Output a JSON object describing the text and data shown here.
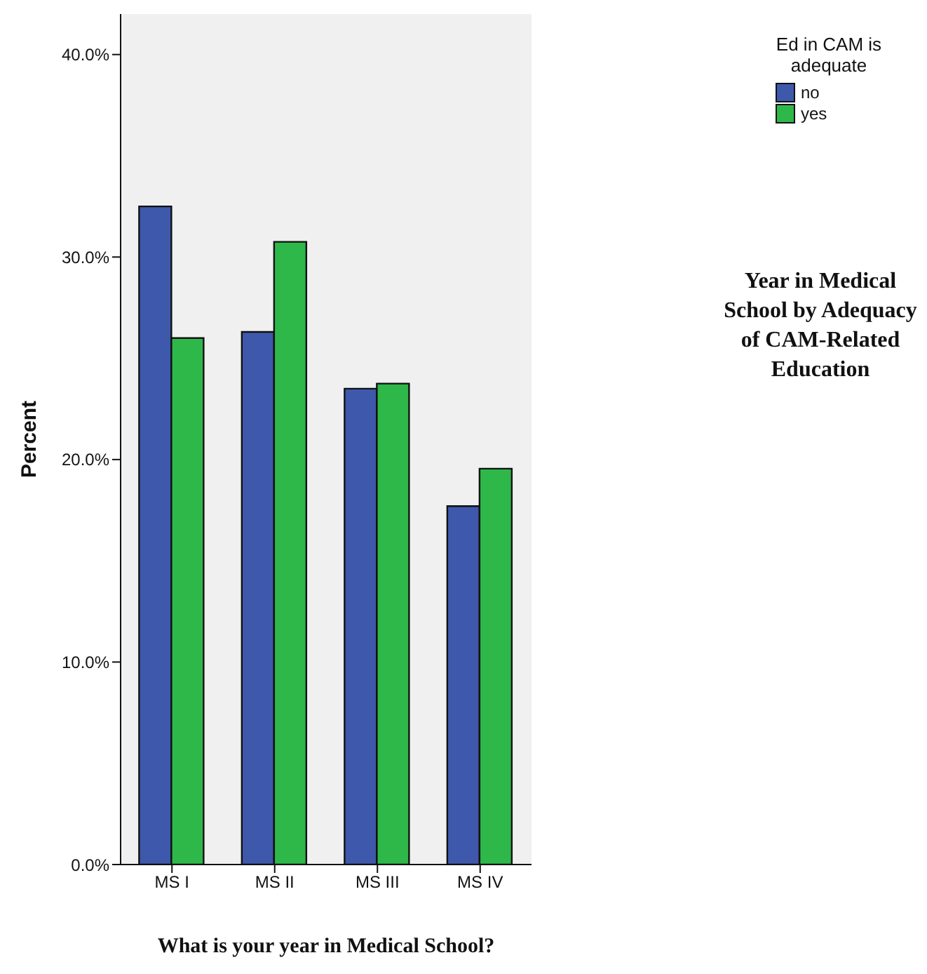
{
  "chart_data": {
    "type": "bar",
    "title": "Year in Medical School by Adequacy of CAM-Related Education",
    "xlabel": "What is your year in Medical School?",
    "ylabel": "Percent",
    "legend_title": "Ed in CAM is adequate",
    "categories": [
      "MS I",
      "MS II",
      "MS III",
      "MS IV"
    ],
    "series": [
      {
        "name": "no",
        "color": "#3e58ac",
        "values": [
          32.5,
          26.3,
          23.5,
          17.7
        ]
      },
      {
        "name": "yes",
        "color": "#2eb84a",
        "values": [
          26.0,
          30.75,
          23.75,
          19.55
        ]
      }
    ],
    "ylim": [
      0,
      42
    ],
    "yticks": [
      {
        "value": 0,
        "label": "0.0%"
      },
      {
        "value": 10,
        "label": "10.0%"
      },
      {
        "value": 20,
        "label": "20.0%"
      },
      {
        "value": 30,
        "label": "30.0%"
      },
      {
        "value": 40,
        "label": "40.0%"
      }
    ],
    "grid": false,
    "legend": "top right"
  }
}
